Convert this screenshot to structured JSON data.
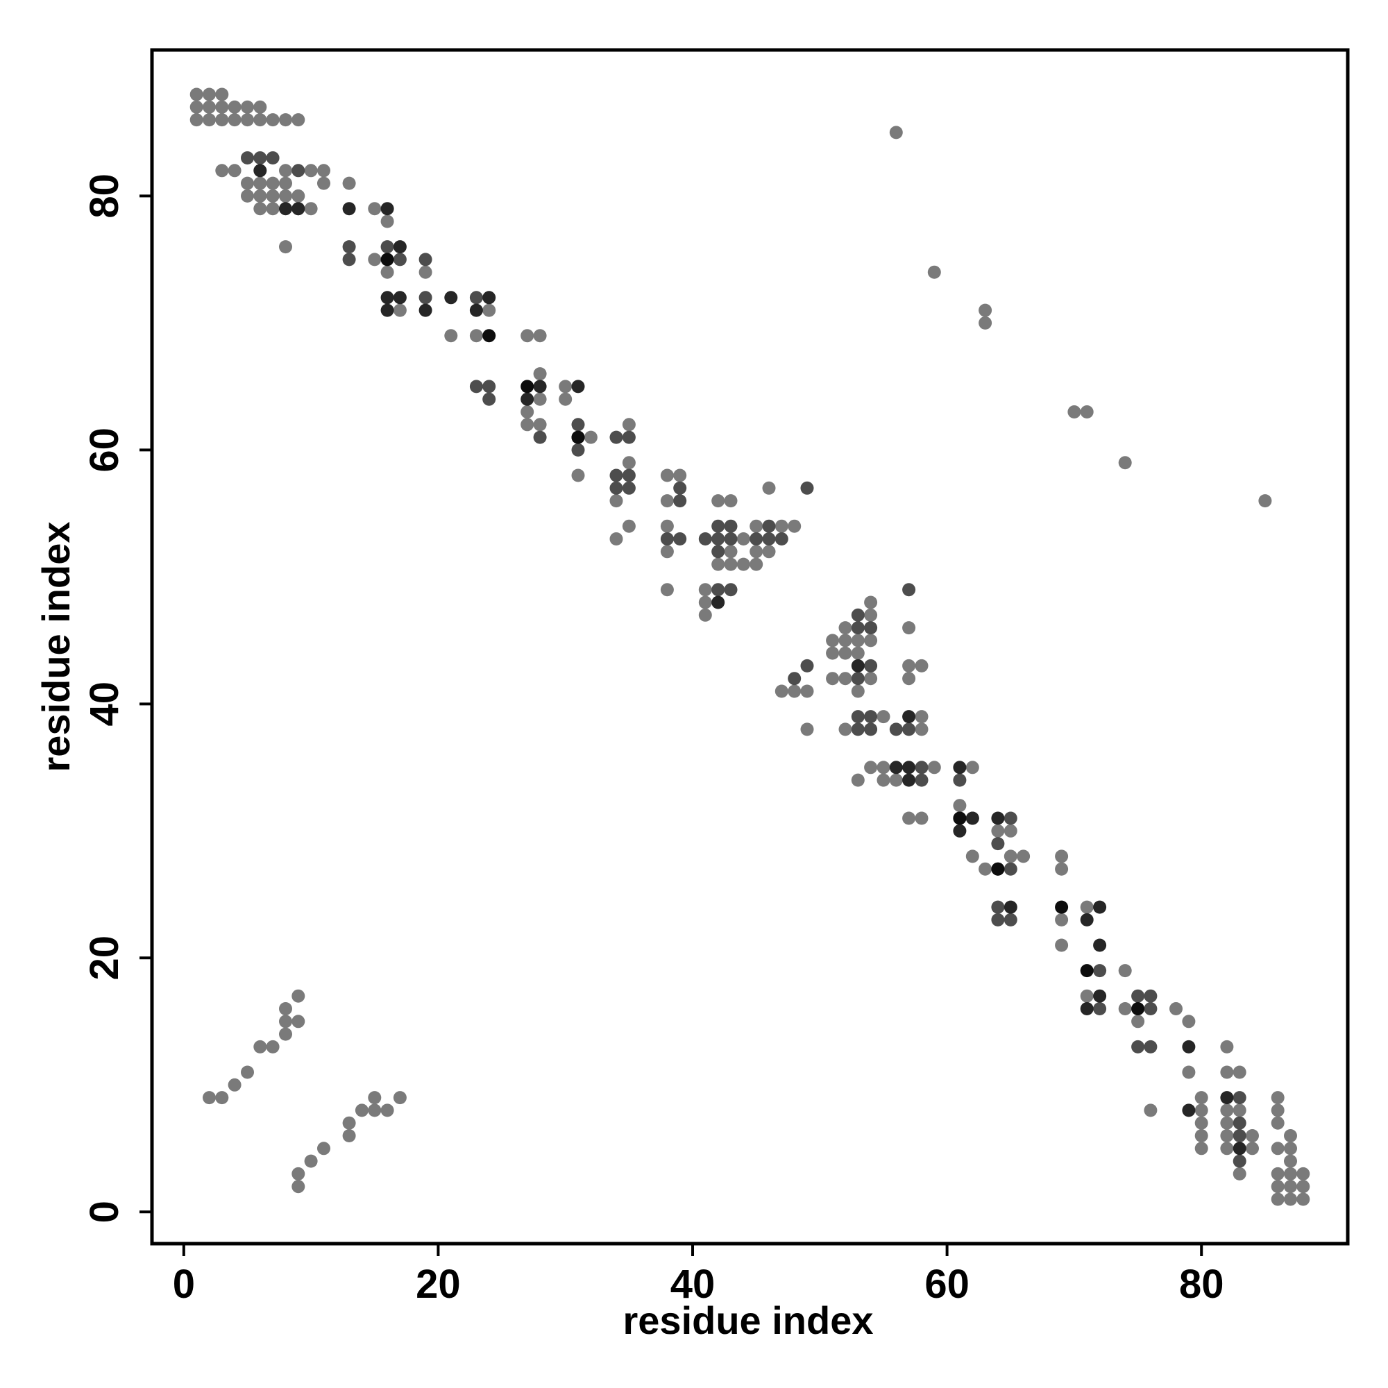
{
  "chart_data": {
    "type": "scatter",
    "title": "",
    "xlabel": "residue index",
    "ylabel": "residue index",
    "xlim": [
      -2.5,
      91.5
    ],
    "ylim": [
      -2.5,
      91.5
    ],
    "x_ticks": [
      0,
      20,
      40,
      60,
      80
    ],
    "y_ticks": [
      0,
      20,
      40,
      60,
      80
    ],
    "grid": false,
    "legend": "none",
    "colors": {
      "light": "#7a7a7a",
      "medium": "#4d4d4d",
      "dark": "#262626",
      "darkest": "#0d0d0d"
    },
    "series": [
      {
        "shade": "light",
        "points": [
          [
            1,
            86
          ],
          [
            2,
            86
          ],
          [
            3,
            86
          ],
          [
            4,
            86
          ],
          [
            5,
            86
          ],
          [
            6,
            86
          ],
          [
            7,
            86
          ],
          [
            8,
            86
          ],
          [
            9,
            86
          ],
          [
            1,
            87
          ],
          [
            2,
            87
          ],
          [
            3,
            87
          ],
          [
            4,
            87
          ],
          [
            5,
            87
          ],
          [
            6,
            87
          ],
          [
            1,
            88
          ],
          [
            2,
            88
          ],
          [
            3,
            88
          ],
          [
            3,
            82
          ],
          [
            4,
            82
          ],
          [
            8,
            82
          ],
          [
            10,
            82
          ],
          [
            11,
            82
          ],
          [
            5,
            81
          ],
          [
            6,
            81
          ],
          [
            7,
            81
          ],
          [
            8,
            81
          ],
          [
            11,
            81
          ],
          [
            13,
            81
          ],
          [
            5,
            80
          ],
          [
            6,
            80
          ],
          [
            7,
            80
          ],
          [
            8,
            80
          ],
          [
            9,
            80
          ],
          [
            6,
            79
          ],
          [
            7,
            79
          ],
          [
            9,
            79
          ],
          [
            10,
            79
          ],
          [
            8,
            76
          ],
          [
            15,
            79
          ],
          [
            16,
            78
          ],
          [
            15,
            75
          ],
          [
            16,
            74
          ],
          [
            17,
            71
          ],
          [
            19,
            74
          ],
          [
            21,
            69
          ],
          [
            23,
            69
          ],
          [
            24,
            71
          ],
          [
            27,
            69
          ],
          [
            28,
            69
          ],
          [
            28,
            66
          ],
          [
            27,
            63
          ],
          [
            27,
            62
          ],
          [
            28,
            62
          ],
          [
            28,
            64
          ],
          [
            30,
            65
          ],
          [
            30,
            64
          ],
          [
            32,
            61
          ],
          [
            31,
            58
          ],
          [
            35,
            62
          ],
          [
            35,
            59
          ],
          [
            34,
            56
          ],
          [
            34,
            53
          ],
          [
            35,
            54
          ],
          [
            38,
            58
          ],
          [
            38,
            56
          ],
          [
            39,
            58
          ],
          [
            38,
            54
          ],
          [
            38,
            52
          ],
          [
            38,
            49
          ],
          [
            42,
            56
          ],
          [
            42,
            51
          ],
          [
            43,
            56
          ],
          [
            43,
            52
          ],
          [
            43,
            51
          ],
          [
            44,
            53
          ],
          [
            44,
            51
          ],
          [
            45,
            54
          ],
          [
            45,
            52
          ],
          [
            45,
            51
          ],
          [
            46,
            52
          ],
          [
            46,
            57
          ],
          [
            47,
            54
          ],
          [
            48,
            54
          ],
          [
            41,
            47
          ],
          [
            41,
            48
          ],
          [
            41,
            49
          ],
          [
            47,
            41
          ],
          [
            48,
            41
          ],
          [
            49,
            41
          ],
          [
            49,
            38
          ],
          [
            51,
            45
          ],
          [
            51,
            44
          ],
          [
            51,
            42
          ],
          [
            52,
            46
          ],
          [
            52,
            45
          ],
          [
            52,
            44
          ],
          [
            52,
            42
          ],
          [
            52,
            38
          ],
          [
            53,
            45
          ],
          [
            53,
            44
          ],
          [
            53,
            41
          ],
          [
            53,
            34
          ],
          [
            54,
            48
          ],
          [
            54,
            47
          ],
          [
            54,
            45
          ],
          [
            54,
            42
          ],
          [
            54,
            35
          ],
          [
            55,
            35
          ],
          [
            55,
            34
          ],
          [
            55,
            39
          ],
          [
            56,
            34
          ],
          [
            57,
            46
          ],
          [
            57,
            43
          ],
          [
            57,
            42
          ],
          [
            57,
            31
          ],
          [
            58,
            43
          ],
          [
            58,
            39
          ],
          [
            58,
            38
          ],
          [
            58,
            31
          ],
          [
            59,
            35
          ],
          [
            61,
            32
          ],
          [
            62,
            28
          ],
          [
            62,
            35
          ],
          [
            63,
            27
          ],
          [
            64,
            30
          ],
          [
            65,
            30
          ],
          [
            65,
            28
          ],
          [
            66,
            28
          ],
          [
            69,
            28
          ],
          [
            69,
            27
          ],
          [
            69,
            23
          ],
          [
            69,
            21
          ],
          [
            71,
            24
          ],
          [
            71,
            17
          ],
          [
            74,
            19
          ],
          [
            74,
            16
          ],
          [
            75,
            15
          ],
          [
            76,
            8
          ],
          [
            78,
            16
          ],
          [
            79,
            15
          ],
          [
            79,
            11
          ],
          [
            80,
            9
          ],
          [
            80,
            8
          ],
          [
            80,
            7
          ],
          [
            80,
            6
          ],
          [
            80,
            5
          ],
          [
            82,
            13
          ],
          [
            82,
            11
          ],
          [
            82,
            8
          ],
          [
            82,
            7
          ],
          [
            82,
            6
          ],
          [
            82,
            5
          ],
          [
            83,
            11
          ],
          [
            83,
            8
          ],
          [
            83,
            3
          ],
          [
            84,
            6
          ],
          [
            84,
            5
          ],
          [
            86,
            9
          ],
          [
            86,
            8
          ],
          [
            86,
            7
          ],
          [
            86,
            5
          ],
          [
            86,
            3
          ],
          [
            86,
            2
          ],
          [
            86,
            1
          ],
          [
            87,
            6
          ],
          [
            87,
            5
          ],
          [
            87,
            4
          ],
          [
            87,
            3
          ],
          [
            87,
            2
          ],
          [
            87,
            1
          ],
          [
            88,
            3
          ],
          [
            88,
            2
          ],
          [
            88,
            1
          ],
          [
            56,
            85
          ],
          [
            59,
            74
          ],
          [
            63,
            71
          ],
          [
            63,
            70
          ],
          [
            70,
            63
          ],
          [
            71,
            63
          ],
          [
            74,
            59
          ],
          [
            85,
            56
          ],
          [
            2,
            9
          ],
          [
            3,
            9
          ],
          [
            4,
            10
          ],
          [
            5,
            11
          ],
          [
            6,
            13
          ],
          [
            7,
            13
          ],
          [
            8,
            14
          ],
          [
            8,
            15
          ],
          [
            8,
            16
          ],
          [
            9,
            15
          ],
          [
            9,
            17
          ],
          [
            9,
            3
          ],
          [
            9,
            2
          ],
          [
            10,
            4
          ],
          [
            11,
            5
          ],
          [
            13,
            7
          ],
          [
            13,
            6
          ],
          [
            14,
            8
          ],
          [
            15,
            9
          ],
          [
            15,
            8
          ],
          [
            16,
            8
          ],
          [
            17,
            9
          ]
        ]
      },
      {
        "shade": "medium",
        "points": [
          [
            5,
            83
          ],
          [
            6,
            83
          ],
          [
            7,
            83
          ],
          [
            9,
            82
          ],
          [
            13,
            76
          ],
          [
            13,
            75
          ],
          [
            16,
            76
          ],
          [
            17,
            75
          ],
          [
            19,
            75
          ],
          [
            19,
            72
          ],
          [
            23,
            72
          ],
          [
            23,
            65
          ],
          [
            24,
            65
          ],
          [
            24,
            64
          ],
          [
            28,
            61
          ],
          [
            31,
            62
          ],
          [
            31,
            60
          ],
          [
            34,
            61
          ],
          [
            35,
            61
          ],
          [
            34,
            58
          ],
          [
            35,
            58
          ],
          [
            34,
            57
          ],
          [
            35,
            57
          ],
          [
            39,
            57
          ],
          [
            39,
            56
          ],
          [
            38,
            53
          ],
          [
            39,
            53
          ],
          [
            41,
            53
          ],
          [
            42,
            54
          ],
          [
            42,
            53
          ],
          [
            42,
            52
          ],
          [
            42,
            49
          ],
          [
            43,
            54
          ],
          [
            43,
            53
          ],
          [
            43,
            49
          ],
          [
            45,
            53
          ],
          [
            46,
            54
          ],
          [
            46,
            53
          ],
          [
            47,
            53
          ],
          [
            48,
            42
          ],
          [
            49,
            43
          ],
          [
            49,
            57
          ],
          [
            53,
            47
          ],
          [
            53,
            46
          ],
          [
            53,
            42
          ],
          [
            53,
            39
          ],
          [
            53,
            38
          ],
          [
            54,
            46
          ],
          [
            54,
            43
          ],
          [
            54,
            39
          ],
          [
            54,
            38
          ],
          [
            56,
            38
          ],
          [
            57,
            49
          ],
          [
            57,
            38
          ],
          [
            58,
            35
          ],
          [
            58,
            34
          ],
          [
            61,
            34
          ],
          [
            62,
            31
          ],
          [
            64,
            29
          ],
          [
            65,
            31
          ],
          [
            65,
            27
          ],
          [
            64,
            24
          ],
          [
            64,
            23
          ],
          [
            65,
            23
          ],
          [
            72,
            19
          ],
          [
            72,
            16
          ],
          [
            75,
            17
          ],
          [
            75,
            13
          ],
          [
            76,
            17
          ],
          [
            76,
            16
          ],
          [
            76,
            13
          ],
          [
            83,
            9
          ],
          [
            83,
            7
          ],
          [
            83,
            6
          ],
          [
            83,
            4
          ]
        ]
      },
      {
        "shade": "dark",
        "points": [
          [
            6,
            82
          ],
          [
            8,
            79
          ],
          [
            9,
            79
          ],
          [
            13,
            79
          ],
          [
            16,
            79
          ],
          [
            16,
            72
          ],
          [
            16,
            71
          ],
          [
            17,
            76
          ],
          [
            17,
            72
          ],
          [
            19,
            71
          ],
          [
            21,
            72
          ],
          [
            23,
            71
          ],
          [
            24,
            72
          ],
          [
            27,
            64
          ],
          [
            28,
            65
          ],
          [
            31,
            65
          ],
          [
            31,
            61
          ],
          [
            42,
            48
          ],
          [
            53,
            43
          ],
          [
            56,
            35
          ],
          [
            57,
            39
          ],
          [
            57,
            35
          ],
          [
            57,
            34
          ],
          [
            61,
            35
          ],
          [
            61,
            31
          ],
          [
            61,
            30
          ],
          [
            62,
            31
          ],
          [
            64,
            31
          ],
          [
            64,
            27
          ],
          [
            65,
            24
          ],
          [
            71,
            23
          ],
          [
            71,
            16
          ],
          [
            72,
            24
          ],
          [
            72,
            21
          ],
          [
            72,
            17
          ],
          [
            79,
            13
          ],
          [
            79,
            8
          ],
          [
            82,
            9
          ],
          [
            83,
            5
          ]
        ]
      },
      {
        "shade": "darkest",
        "points": [
          [
            16,
            75
          ],
          [
            24,
            69
          ],
          [
            27,
            65
          ],
          [
            31,
            61
          ],
          [
            61,
            31
          ],
          [
            64,
            27
          ],
          [
            69,
            24
          ],
          [
            71,
            19
          ],
          [
            75,
            16
          ]
        ]
      }
    ]
  }
}
